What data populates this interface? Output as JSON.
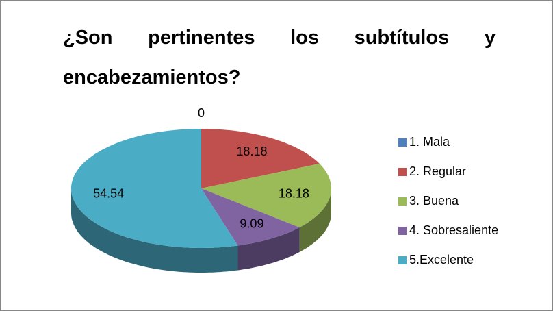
{
  "chart_data": {
    "type": "pie3d",
    "title": "¿Son pertinentes los subtítulos y encabezamientos?",
    "categories": [
      "1. Mala",
      "2. Regular",
      "3. Buena",
      "4. Sobresaliente",
      "5.Excelente"
    ],
    "values": [
      0,
      18.18,
      18.18,
      9.09,
      54.54
    ],
    "colors": [
      "#4f81bd",
      "#c0504d",
      "#9bbb59",
      "#8064a2",
      "#4bacc6"
    ],
    "legend": "right"
  }
}
